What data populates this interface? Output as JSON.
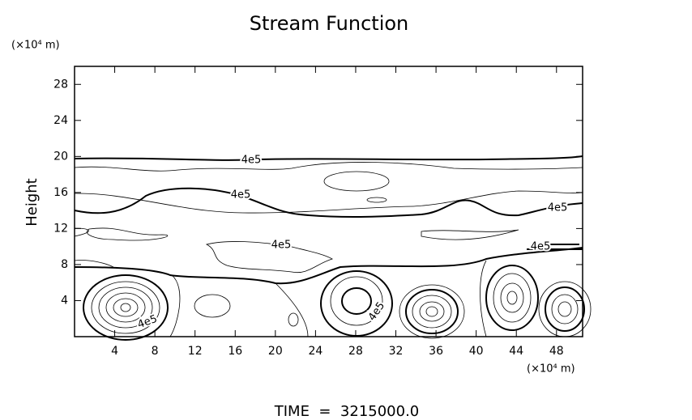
{
  "chart_data": {
    "type": "contour",
    "title": "Stream Function",
    "ylabel": "Height",
    "yunit": "(×10⁴ m)",
    "xunit": "(×10⁴ m)",
    "xlim": [
      0,
      50.6
    ],
    "xticks": [
      4,
      8,
      12,
      16,
      20,
      24,
      28,
      32,
      36,
      40,
      44,
      48
    ],
    "ylim": [
      0,
      30
    ],
    "yticks": [
      4,
      8,
      12,
      16,
      20,
      24,
      28
    ],
    "contour_labels": [
      "4e5",
      "4e5",
      "4e5",
      "4e5",
      "4e5",
      "4e5",
      "4e5"
    ],
    "footer": "TIME  =  3215000.0"
  }
}
